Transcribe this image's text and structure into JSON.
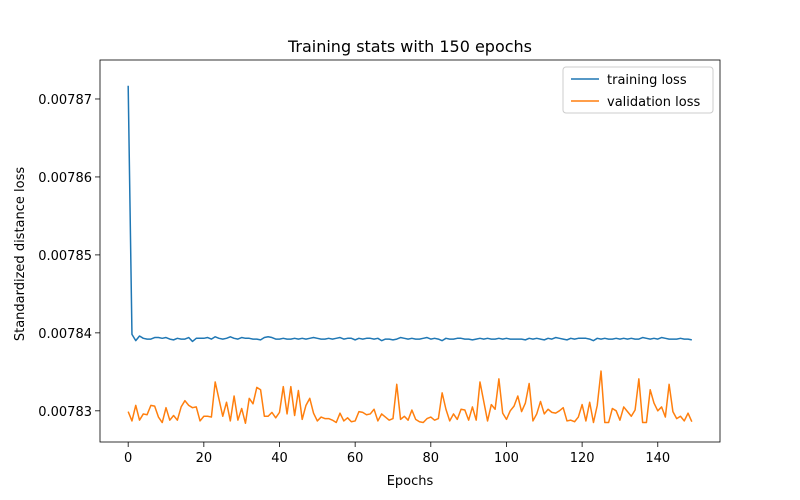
{
  "chart_data": {
    "type": "line",
    "title": "Training stats with 150 epochs",
    "xlabel": "Epochs",
    "ylabel": "Standardized distance loss",
    "xlim": [
      -7.45,
      156.45
    ],
    "ylim": [
      0.007826,
      0.007875
    ],
    "xticks": [
      0,
      20,
      40,
      60,
      80,
      100,
      120,
      140
    ],
    "yticks": [
      0.00783,
      0.00784,
      0.00785,
      0.00786,
      0.00787
    ],
    "ytick_labels": [
      "0.00783",
      "0.00784",
      "0.00785",
      "0.00786",
      "0.00787"
    ],
    "grid": false,
    "legend_position": "top-right",
    "series": [
      {
        "name": "training loss",
        "color": "#1f77b4",
        "x_start": 0,
        "x_step": 1,
        "values": [
          0.0078717,
          0.0078398,
          0.007839,
          0.0078396,
          0.0078393,
          0.0078392,
          0.0078392,
          0.0078394,
          0.0078394,
          0.0078393,
          0.0078394,
          0.0078392,
          0.0078391,
          0.0078393,
          0.0078392,
          0.0078392,
          0.0078394,
          0.0078389,
          0.0078393,
          0.0078393,
          0.0078393,
          0.0078394,
          0.0078392,
          0.0078395,
          0.0078393,
          0.0078392,
          0.0078393,
          0.0078395,
          0.0078393,
          0.0078392,
          0.0078394,
          0.0078393,
          0.0078393,
          0.0078392,
          0.0078392,
          0.0078391,
          0.0078394,
          0.0078395,
          0.0078394,
          0.0078392,
          0.0078392,
          0.0078393,
          0.0078392,
          0.0078392,
          0.0078393,
          0.0078392,
          0.0078393,
          0.0078392,
          0.0078393,
          0.0078394,
          0.0078393,
          0.0078392,
          0.0078392,
          0.0078393,
          0.0078392,
          0.0078393,
          0.0078394,
          0.0078392,
          0.0078393,
          0.0078393,
          0.0078391,
          0.0078393,
          0.0078392,
          0.0078393,
          0.0078393,
          0.0078392,
          0.0078393,
          0.007839,
          0.0078392,
          0.0078392,
          0.0078391,
          0.0078392,
          0.0078394,
          0.0078393,
          0.0078392,
          0.0078393,
          0.0078392,
          0.0078392,
          0.0078393,
          0.0078394,
          0.0078392,
          0.0078393,
          0.0078392,
          0.007839,
          0.0078393,
          0.0078392,
          0.0078392,
          0.0078393,
          0.0078393,
          0.0078392,
          0.0078392,
          0.0078391,
          0.0078392,
          0.0078393,
          0.0078392,
          0.0078393,
          0.0078392,
          0.0078392,
          0.0078393,
          0.0078392,
          0.0078393,
          0.0078392,
          0.0078392,
          0.0078392,
          0.0078392,
          0.0078391,
          0.0078393,
          0.0078392,
          0.0078393,
          0.0078392,
          0.0078391,
          0.0078393,
          0.0078392,
          0.0078394,
          0.0078393,
          0.0078392,
          0.0078391,
          0.0078393,
          0.0078392,
          0.0078393,
          0.0078393,
          0.0078393,
          0.0078392,
          0.007839,
          0.0078393,
          0.0078392,
          0.0078393,
          0.0078392,
          0.0078392,
          0.0078393,
          0.0078392,
          0.0078393,
          0.0078392,
          0.0078393,
          0.0078392,
          0.0078392,
          0.0078394,
          0.0078393,
          0.0078392,
          0.0078393,
          0.0078392,
          0.0078394,
          0.0078393,
          0.0078392,
          0.0078392,
          0.0078392,
          0.0078393,
          0.0078392,
          0.0078392,
          0.0078391
        ]
      },
      {
        "name": "validation loss",
        "color": "#ff7f0e",
        "x_start": 0,
        "x_step": 1,
        "values": [
          0.0078299,
          0.0078287,
          0.0078307,
          0.0078288,
          0.0078296,
          0.0078295,
          0.0078307,
          0.0078306,
          0.0078292,
          0.0078285,
          0.0078304,
          0.0078288,
          0.0078294,
          0.0078288,
          0.0078305,
          0.0078313,
          0.0078307,
          0.0078304,
          0.0078305,
          0.0078287,
          0.0078293,
          0.0078293,
          0.0078292,
          0.0078337,
          0.0078315,
          0.0078293,
          0.0078311,
          0.0078287,
          0.0078319,
          0.0078288,
          0.0078303,
          0.0078284,
          0.0078316,
          0.0078309,
          0.007833,
          0.0078327,
          0.0078293,
          0.0078293,
          0.0078298,
          0.0078291,
          0.0078298,
          0.0078331,
          0.0078296,
          0.0078331,
          0.0078294,
          0.0078326,
          0.0078289,
          0.0078307,
          0.0078316,
          0.0078297,
          0.0078287,
          0.0078292,
          0.007829,
          0.007829,
          0.0078288,
          0.0078285,
          0.0078297,
          0.0078287,
          0.0078291,
          0.0078286,
          0.0078287,
          0.0078299,
          0.0078298,
          0.0078295,
          0.0078296,
          0.0078302,
          0.0078287,
          0.0078296,
          0.0078292,
          0.0078288,
          0.007829,
          0.0078334,
          0.0078289,
          0.0078293,
          0.0078288,
          0.0078301,
          0.0078289,
          0.0078286,
          0.0078285,
          0.007829,
          0.0078292,
          0.0078288,
          0.007829,
          0.0078323,
          0.0078302,
          0.0078287,
          0.0078296,
          0.0078289,
          0.0078302,
          0.0078301,
          0.0078288,
          0.0078305,
          0.0078288,
          0.0078337,
          0.0078312,
          0.0078287,
          0.0078308,
          0.0078302,
          0.0078341,
          0.0078297,
          0.0078289,
          0.00783,
          0.0078306,
          0.0078319,
          0.0078299,
          0.007831,
          0.0078335,
          0.0078287,
          0.0078296,
          0.0078312,
          0.0078296,
          0.0078302,
          0.0078298,
          0.0078297,
          0.00783,
          0.0078304,
          0.0078287,
          0.0078288,
          0.0078286,
          0.0078292,
          0.0078308,
          0.0078287,
          0.0078311,
          0.0078285,
          0.0078307,
          0.0078351,
          0.0078285,
          0.0078285,
          0.0078303,
          0.00783,
          0.0078288,
          0.0078305,
          0.0078299,
          0.0078293,
          0.0078301,
          0.0078341,
          0.0078285,
          0.0078285,
          0.0078327,
          0.007831,
          0.00783,
          0.0078305,
          0.0078292,
          0.0078334,
          0.0078299,
          0.007829,
          0.0078293,
          0.0078287,
          0.0078297,
          0.0078286
        ]
      }
    ]
  }
}
